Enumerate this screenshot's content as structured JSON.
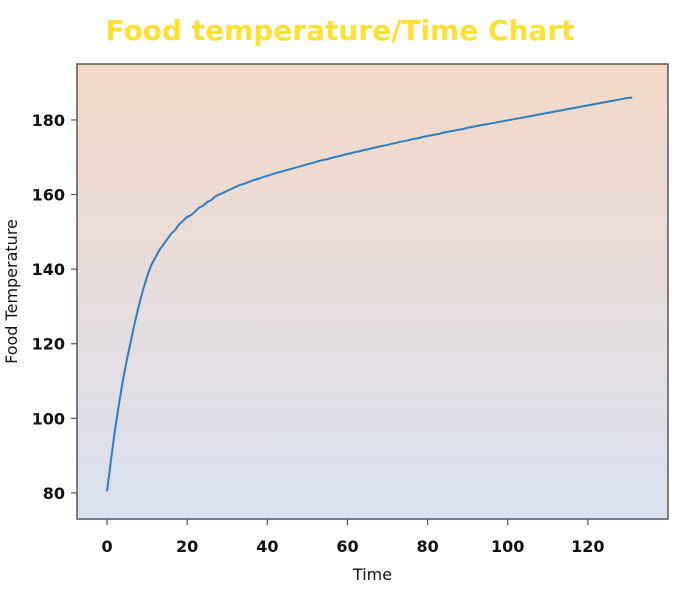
{
  "colors": {
    "title": "#FFE033",
    "line": "#2f7fc0",
    "background_top": "#f4d9c8",
    "background_bottom": "#d9e0f0",
    "frame": "#555555"
  },
  "chart_data": {
    "type": "line",
    "title": "Food temperature/Time Chart",
    "xlabel": "Time",
    "ylabel": "Food Temperature",
    "xlim": [
      -7.5,
      140
    ],
    "ylim": [
      73,
      195
    ],
    "xticks": [
      0,
      20,
      40,
      60,
      80,
      100,
      120
    ],
    "yticks": [
      80,
      100,
      120,
      140,
      160,
      180
    ],
    "grid": false,
    "series": [
      {
        "x": [
          0,
          1,
          2,
          3,
          4,
          5,
          6,
          7,
          8,
          9,
          10,
          11,
          12,
          13,
          14,
          15,
          16,
          17,
          18,
          19,
          20,
          21,
          22,
          23,
          24,
          25,
          26,
          27,
          28,
          29,
          30,
          31,
          32,
          33,
          34,
          35,
          36,
          37,
          38,
          39,
          40,
          41,
          42,
          43,
          44,
          45,
          46,
          47,
          48,
          49,
          50,
          51,
          52,
          53,
          54,
          55,
          56,
          57,
          58,
          59,
          60,
          61,
          62,
          63,
          64,
          65,
          66,
          67,
          68,
          69,
          70,
          71,
          72,
          73,
          74,
          75,
          76,
          77,
          78,
          79,
          80,
          81,
          82,
          83,
          84,
          85,
          86,
          87,
          88,
          89,
          90,
          91,
          92,
          93,
          94,
          95,
          96,
          97,
          98,
          99,
          100,
          101,
          102,
          103,
          104,
          105,
          106,
          107,
          108,
          109,
          110,
          111,
          112,
          113,
          114,
          115,
          116,
          117,
          118,
          119,
          120,
          121,
          122,
          123,
          124,
          125,
          126,
          127,
          128,
          129,
          130,
          131
        ],
        "values": [
          80.5,
          89,
          97,
          104,
          110.5,
          116,
          121,
          126,
          130.5,
          134.5,
          138,
          141,
          143,
          145,
          146.5,
          148,
          149.5,
          150.5,
          152,
          153,
          154,
          154.5,
          155.5,
          156.5,
          157,
          158,
          158.5,
          159.5,
          160,
          160.5,
          161,
          161.5,
          162,
          162.5,
          162.8,
          163.2,
          163.6,
          164,
          164.3,
          164.7,
          165,
          165.4,
          165.7,
          166,
          166.3,
          166.6,
          166.9,
          167.2,
          167.5,
          167.8,
          168.1,
          168.4,
          168.7,
          169,
          169.3,
          169.5,
          169.8,
          170.1,
          170.3,
          170.6,
          170.9,
          171.1,
          171.4,
          171.6,
          171.9,
          172.1,
          172.4,
          172.6,
          172.9,
          173.1,
          173.3,
          173.6,
          173.8,
          174.1,
          174.3,
          174.5,
          174.8,
          175,
          175.2,
          175.5,
          175.7,
          175.9,
          176.1,
          176.3,
          176.6,
          176.8,
          177,
          177.2,
          177.4,
          177.6,
          177.9,
          178.1,
          178.3,
          178.5,
          178.7,
          178.9,
          179.1,
          179.3,
          179.5,
          179.7,
          179.9,
          180.1,
          180.3,
          180.5,
          180.7,
          180.9,
          181.1,
          181.3,
          181.5,
          181.7,
          181.9,
          182.1,
          182.3,
          182.5,
          182.7,
          182.9,
          183.1,
          183.3,
          183.5,
          183.7,
          183.9,
          184.1,
          184.3,
          184.5,
          184.7,
          184.9,
          185.1,
          185.3,
          185.5,
          185.7,
          185.9,
          186
        ]
      }
    ]
  }
}
